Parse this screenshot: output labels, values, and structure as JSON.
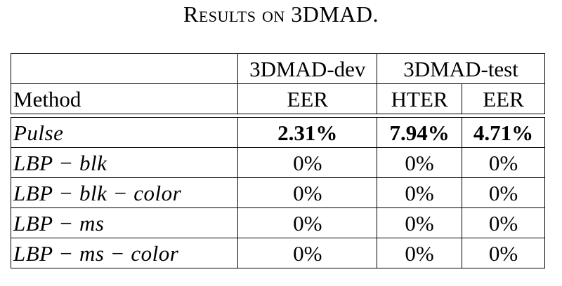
{
  "caption": "Results on 3DMAD.",
  "table": {
    "group_headers": {
      "dev": "3DMAD-dev",
      "test": "3DMAD-test"
    },
    "column_headers": {
      "method": "Method",
      "dev_eer": "EER",
      "test_hter": "HTER",
      "test_eer": "EER"
    },
    "rows": [
      {
        "method": "Pulse",
        "dev_eer": "2.31%",
        "test_hter": "7.94%",
        "test_eer": "4.71%"
      },
      {
        "method": "LBP − blk",
        "dev_eer": "0%",
        "test_hter": "0%",
        "test_eer": "0%"
      },
      {
        "method": "LBP − blk − color",
        "dev_eer": "0%",
        "test_hter": "0%",
        "test_eer": "0%"
      },
      {
        "method": "LBP − ms",
        "dev_eer": "0%",
        "test_hter": "0%",
        "test_eer": "0%"
      },
      {
        "method": "LBP − ms − color",
        "dev_eer": "0%",
        "test_hter": "0%",
        "test_eer": "0%"
      }
    ]
  }
}
